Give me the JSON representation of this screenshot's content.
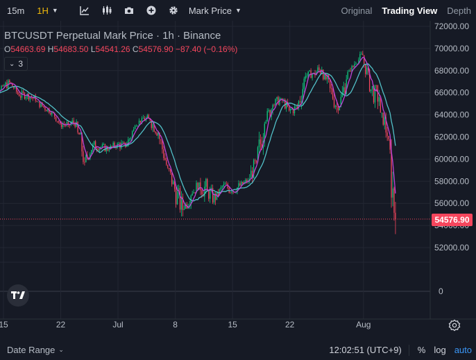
{
  "toolbar": {
    "timeframes": [
      {
        "label": "15m",
        "active": false
      },
      {
        "label": "1H",
        "active": true
      }
    ],
    "icons": [
      "indicators-icon",
      "candle-type-icon",
      "camera-icon",
      "add-icon",
      "settings-icon"
    ],
    "price_type": "Mark Price",
    "views": [
      {
        "label": "Original",
        "active": false
      },
      {
        "label": "Trading View",
        "active": true
      },
      {
        "label": "Depth",
        "active": false
      }
    ]
  },
  "legend": {
    "title": "BTCUSDT Perpetual Mark Price · 1h · Binance",
    "open_label": "O",
    "open": "54663.69",
    "high_label": "H",
    "high": "54683.50",
    "low_label": "L",
    "low": "54541.26",
    "close_label": "C",
    "close": "54576.90",
    "change": "−87.40 (−0.16%)",
    "indicator_count": "3"
  },
  "price_axis": {
    "ticks": [
      "72000.00",
      "70000.00",
      "68000.00",
      "66000.00",
      "64000.00",
      "62000.00",
      "60000.00",
      "58000.00",
      "56000.00",
      "54000.00",
      "52000.00"
    ],
    "volume_zero": "0",
    "current_price": "54576.90"
  },
  "time_axis": {
    "ticks": [
      {
        "label": "15",
        "day": 15.0
      },
      {
        "label": "22",
        "day": 22.0
      },
      {
        "label": "Jul",
        "day": 29.0
      },
      {
        "label": "8",
        "day": 36.0
      },
      {
        "label": "15",
        "day": 43.0
      },
      {
        "label": "22",
        "day": 50.0
      },
      {
        "label": "Aug",
        "day": 59.0
      }
    ]
  },
  "bottombar": {
    "date_range": "Date Range",
    "time": "12:02:51 (UTC+9)",
    "percent": "%",
    "log": "log",
    "auto": "auto"
  },
  "colors": {
    "up": "#0ecb81",
    "down": "#f6465d",
    "ma_fast": "#c043d8",
    "ma_slow": "#52c1c8",
    "grid": "#232733",
    "axis_text": "#b7bdc6",
    "accent": "#f0b90b"
  },
  "chart_data": {
    "type": "candlestick",
    "ylim": [
      51000,
      72500
    ],
    "x": [
      13.5,
      14.5,
      15.5,
      16.5,
      17.5,
      18.5,
      19.5,
      20.5,
      21.5,
      22.5,
      23.5,
      24.5,
      25.5,
      26.5,
      27.5,
      28.5,
      29.5,
      30.5,
      31.5,
      32.5,
      33.5,
      34.5,
      35.5,
      36.5,
      37.5,
      38.5,
      39.5,
      40.5,
      41.5,
      42.5,
      43.5,
      44.5,
      45.5,
      46.5,
      47.5,
      48.5,
      49.5,
      50.5,
      51.5,
      52.5,
      53.5,
      54.5,
      55.5,
      56.5,
      57.5,
      58.5,
      59.5,
      60.5,
      61.5,
      62.5
    ],
    "series": [
      {
        "name": "close",
        "values": [
          66100,
          66600,
          66900,
          65700,
          65900,
          65300,
          64700,
          64300,
          63200,
          63100,
          63400,
          59700,
          61300,
          61100,
          60900,
          61400,
          61100,
          62700,
          63700,
          63500,
          62400,
          59500,
          57300,
          55400,
          56700,
          57900,
          57100,
          56300,
          57700,
          57100,
          57600,
          58100,
          59700,
          63200,
          64900,
          65500,
          64400,
          64600,
          67500,
          67800,
          68100,
          66400,
          64400,
          67200,
          68600,
          69400,
          66300,
          65600,
          62100,
          54600
        ]
      },
      {
        "name": "high",
        "values": [
          66800,
          67200,
          67400,
          66600,
          66700,
          66100,
          65200,
          65000,
          64200,
          63800,
          64200,
          62400,
          62100,
          61900,
          61500,
          61900,
          62200,
          63500,
          64200,
          64100,
          63800,
          61800,
          59200,
          57700,
          57800,
          58700,
          58300,
          57700,
          58600,
          58000,
          58400,
          58700,
          60600,
          64500,
          66000,
          66300,
          65500,
          65700,
          68200,
          68500,
          68800,
          67700,
          66800,
          68000,
          69500,
          70100,
          68600,
          66700,
          64200,
          61800
        ]
      },
      {
        "name": "low",
        "values": [
          65600,
          66000,
          65900,
          65300,
          65300,
          64600,
          63900,
          63800,
          62800,
          62400,
          62500,
          58500,
          59900,
          60300,
          60200,
          60600,
          60600,
          61100,
          63000,
          62500,
          61700,
          59000,
          56600,
          53700,
          55500,
          56900,
          54400,
          55000,
          56700,
          56300,
          56800,
          57500,
          57800,
          59700,
          63400,
          64700,
          63800,
          63900,
          64400,
          67100,
          66500,
          65400,
          63600,
          64700,
          67900,
          68600,
          65700,
          62900,
          60800,
          52400
        ]
      }
    ]
  }
}
